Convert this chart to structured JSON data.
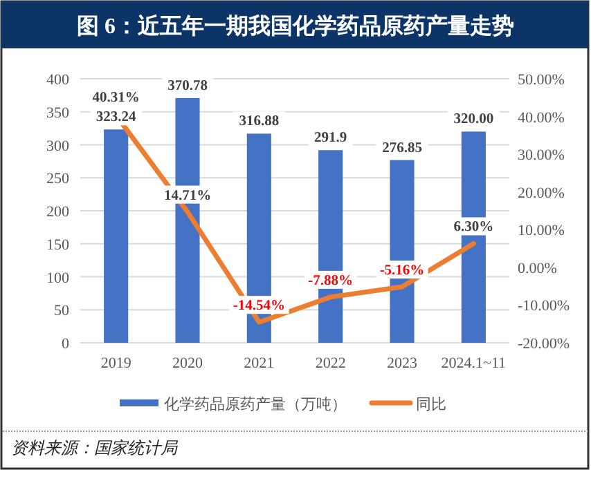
{
  "chart_data": {
    "type": "bar",
    "title": "图 6：近五年一期我国化学药品原药产量走势",
    "categories": [
      "2019",
      "2020",
      "2021",
      "2022",
      "2023",
      "2024.1~11"
    ],
    "series": [
      {
        "name": "化学药品原药产量（万吨）",
        "color": "#4472c4",
        "values": [
          323.24,
          370.78,
          316.88,
          291.9,
          276.85,
          320.0
        ],
        "value_labels": [
          "323.24",
          "370.78",
          "316.88",
          "291.9",
          "276.85",
          "320.00"
        ]
      },
      {
        "name": "同比",
        "type": "line",
        "axis": "y2",
        "color": "#ed7d31",
        "values": [
          40.31,
          14.71,
          -14.54,
          -7.88,
          -5.16,
          6.3
        ],
        "value_labels": [
          "40.31%",
          "14.71%",
          "-14.54%",
          "-7.88%",
          "-5.16%",
          "6.30%"
        ]
      }
    ],
    "ylim": [
      0,
      400
    ],
    "yticks": [
      0,
      50,
      100,
      150,
      200,
      250,
      300,
      350,
      400
    ],
    "y2lim": [
      -20,
      50
    ],
    "y2ticks": [
      {
        "value": -20,
        "label": "-20.00%"
      },
      {
        "value": -10,
        "label": "-10.00%"
      },
      {
        "value": 0,
        "label": "0.00%"
      },
      {
        "value": 10,
        "label": "10.00%"
      },
      {
        "value": 20,
        "label": "20.00%"
      },
      {
        "value": 30,
        "label": "30.00%"
      },
      {
        "value": 40,
        "label": "40.00%"
      },
      {
        "value": 50,
        "label": "50.00%"
      }
    ],
    "grid": "y",
    "legend": "bottom",
    "annotations": [
      "资料来源：国家统计局"
    ]
  }
}
